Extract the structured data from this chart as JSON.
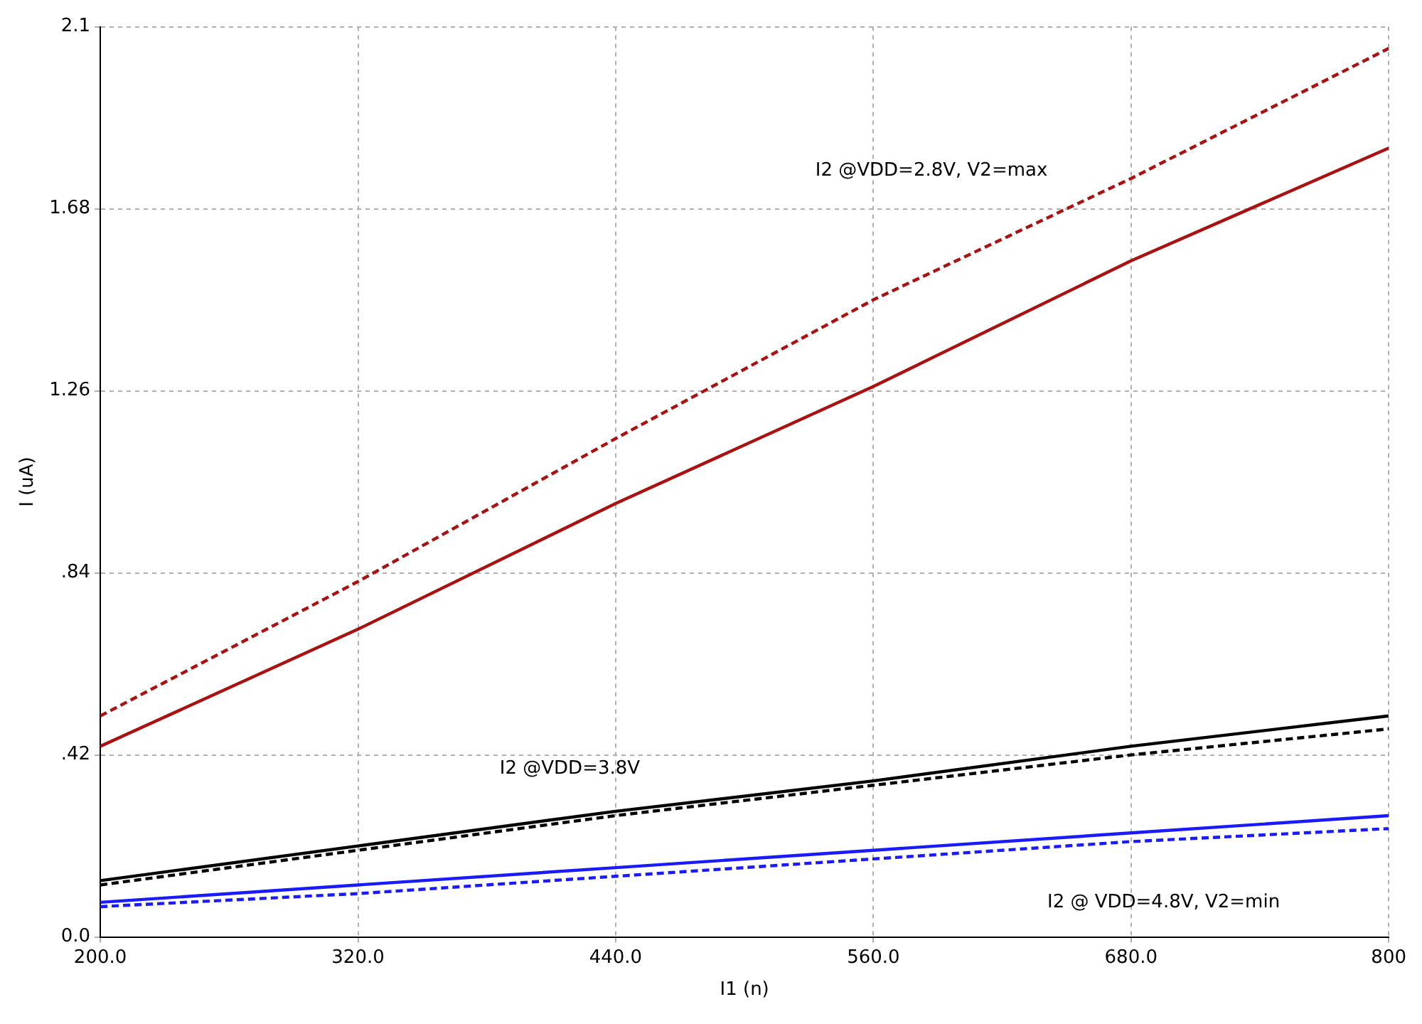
{
  "chart_data": {
    "type": "line",
    "xlabel": "I1 (n)",
    "ylabel": "I (uA)",
    "x": [
      200,
      320,
      440,
      560,
      680,
      800
    ],
    "series": [
      {
        "color": "#aa1111",
        "line_style": "dashed",
        "values": [
          0.51,
          0.82,
          1.15,
          1.47,
          1.75,
          2.05
        ]
      },
      {
        "color": "#aa1111",
        "line_style": "solid",
        "values": [
          0.44,
          0.71,
          1.0,
          1.27,
          1.56,
          1.82
        ]
      },
      {
        "color": "#000000",
        "line_style": "solid",
        "values": [
          0.13,
          0.21,
          0.29,
          0.36,
          0.44,
          0.51
        ]
      },
      {
        "color": "#000000",
        "line_style": "dashed",
        "values": [
          0.12,
          0.2,
          0.28,
          0.35,
          0.42,
          0.48
        ]
      },
      {
        "color": "#1a1aff",
        "line_style": "solid",
        "values": [
          0.08,
          0.12,
          0.16,
          0.2,
          0.24,
          0.28
        ]
      },
      {
        "color": "#1a1aff",
        "line_style": "dashed",
        "values": [
          0.07,
          0.1,
          0.14,
          0.18,
          0.22,
          0.25
        ]
      }
    ],
    "xlim": [
      200,
      800
    ],
    "ylim": [
      0,
      2.1
    ],
    "xticks": [
      {
        "value": 200,
        "label": "200.0"
      },
      {
        "value": 320,
        "label": "320.0"
      },
      {
        "value": 440,
        "label": "440.0"
      },
      {
        "value": 560,
        "label": "560.0"
      },
      {
        "value": 680,
        "label": "680.0"
      },
      {
        "value": 800,
        "label": "800"
      }
    ],
    "yticks": [
      {
        "value": 0,
        "label": "0.0"
      },
      {
        "value": 0.42,
        "label": ".42"
      },
      {
        "value": 0.84,
        "label": ".84"
      },
      {
        "value": 1.26,
        "label": "1.26"
      },
      {
        "value": 1.68,
        "label": "1.68"
      },
      {
        "value": 2.1,
        "label": "2.1"
      }
    ],
    "grid": true,
    "marker": "none",
    "annotations": [
      "I2 @VDD=2.8V, V2=max",
      "I2 @VDD=3.8V",
      "I2 @ VDD=4.8V, V2=min"
    ]
  }
}
